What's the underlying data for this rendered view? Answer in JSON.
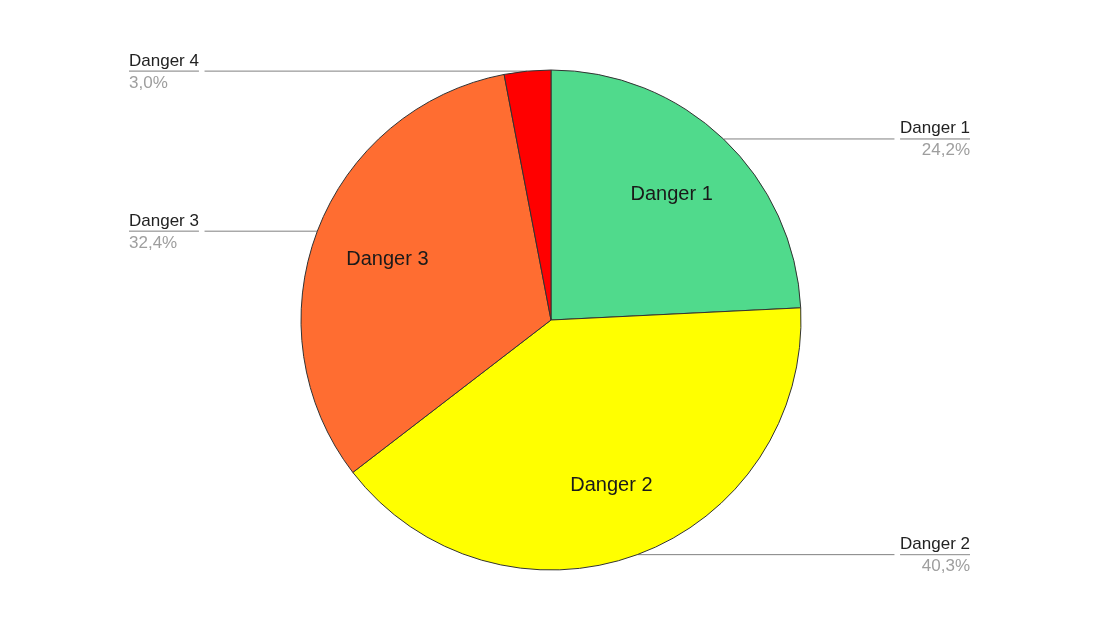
{
  "chart_data": {
    "type": "pie",
    "categories": [
      "Danger 1",
      "Danger 2",
      "Danger 3",
      "Danger 4"
    ],
    "values": [
      24.2,
      40.3,
      32.4,
      3.0
    ],
    "colors": [
      "#50da8c",
      "#ffff00",
      "#ff6d31",
      "#ff0000"
    ],
    "value_labels": [
      "24,2%",
      "40,3%",
      "32,4%",
      "3,0%"
    ]
  }
}
